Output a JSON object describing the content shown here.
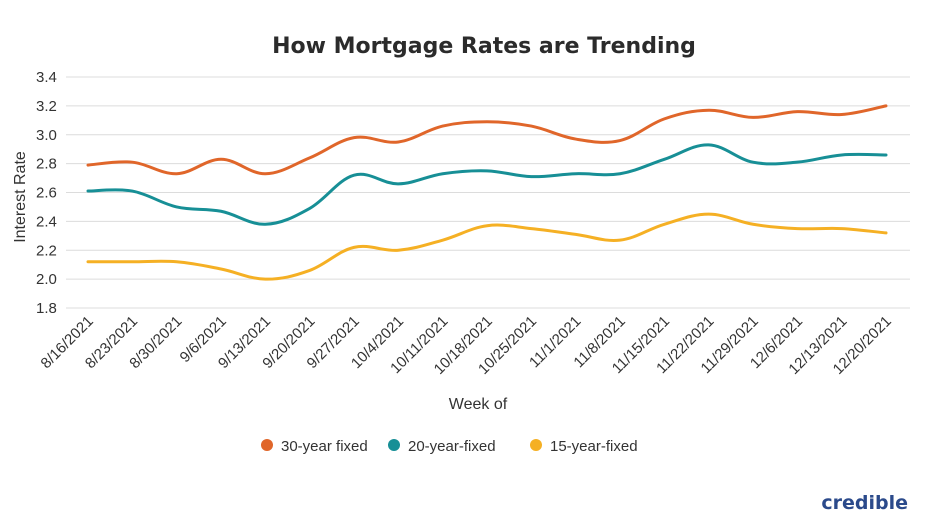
{
  "brand": "credible",
  "chart_data": {
    "type": "line",
    "title": "How Mortgage Rates are Trending",
    "xlabel": "Week of",
    "ylabel": "Interest Rate",
    "ylim": [
      1.8,
      3.4
    ],
    "yticks": [
      "1.8",
      "2.0",
      "2.2",
      "2.4",
      "2.6",
      "2.8",
      "3.0",
      "3.2",
      "3.4"
    ],
    "grid": true,
    "legend_position": "bottom",
    "categories": [
      "8/16/2021",
      "8/23/2021",
      "8/30/2021",
      "9/6/2021",
      "9/13/2021",
      "9/20/2021",
      "9/27/2021",
      "10/4/2021",
      "10/11/2021",
      "10/18/2021",
      "10/25/2021",
      "11/1/2021",
      "11/8/2021",
      "11/15/2021",
      "11/22/2021",
      "11/29/2021",
      "12/6/2021",
      "12/13/2021",
      "12/20/2021"
    ],
    "series": [
      {
        "name": "30-year fixed",
        "color": "#e0662a",
        "values": [
          2.79,
          2.81,
          2.73,
          2.83,
          2.73,
          2.84,
          2.98,
          2.95,
          3.06,
          3.09,
          3.06,
          2.97,
          2.96,
          3.11,
          3.17,
          3.12,
          3.16,
          3.14,
          3.2
        ]
      },
      {
        "name": "20-year-fixed",
        "color": "#178f96",
        "values": [
          2.61,
          2.61,
          2.5,
          2.47,
          2.38,
          2.49,
          2.72,
          2.66,
          2.73,
          2.75,
          2.71,
          2.73,
          2.73,
          2.83,
          2.93,
          2.81,
          2.81,
          2.86,
          2.86
        ]
      },
      {
        "name": "15-year-fixed",
        "color": "#f5b024",
        "values": [
          2.12,
          2.12,
          2.12,
          2.07,
          2.0,
          2.06,
          2.22,
          2.2,
          2.27,
          2.37,
          2.35,
          2.31,
          2.27,
          2.38,
          2.45,
          2.38,
          2.35,
          2.35,
          2.32
        ]
      }
    ]
  }
}
